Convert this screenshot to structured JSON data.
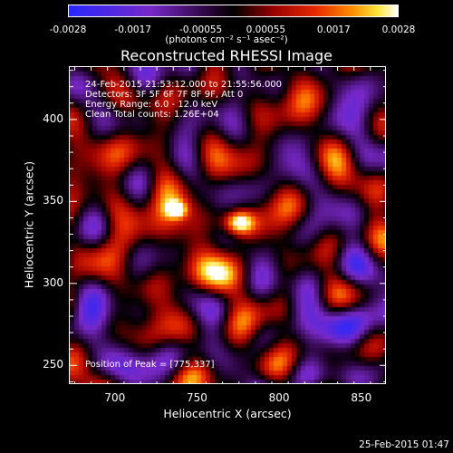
{
  "colorbar": {
    "ticks": [
      "-0.0028",
      "-0.0017",
      "-0.00055",
      "0.00055",
      "0.0017",
      "0.0028"
    ],
    "units": "(photons cm⁻² s⁻¹ asec⁻²)",
    "min": -0.0028,
    "max": 0.0028
  },
  "chart_data": {
    "type": "heatmap",
    "title": "Reconstructed RHESSI Image",
    "xlabel": "Heliocentric X (arcsec)",
    "ylabel": "Heliocentric Y (arcsec)",
    "xlim": [
      672,
      865
    ],
    "ylim": [
      238,
      432
    ],
    "xticks": [
      700,
      750,
      800,
      850
    ],
    "yticks": [
      250,
      300,
      350,
      400
    ],
    "annotations": [
      "24-Feb-2015 21:53:12.000 to 21:55:56.000",
      "Detectors: 3F 5F 6F 7F 8F 9F, Att 0",
      "Energy Range: 6.0 - 12.0 keV",
      "Clean    Total counts: 1.26E+04"
    ],
    "peak_label": "Position of Peak = [775,337]",
    "peak": [
      775,
      337
    ],
    "sources": [
      {
        "x": 775,
        "y": 337,
        "value": 0.0028
      },
      {
        "x": 737,
        "y": 345,
        "value": 0.0022
      }
    ]
  },
  "footer_timestamp": "25-Feb-2015 01:47"
}
